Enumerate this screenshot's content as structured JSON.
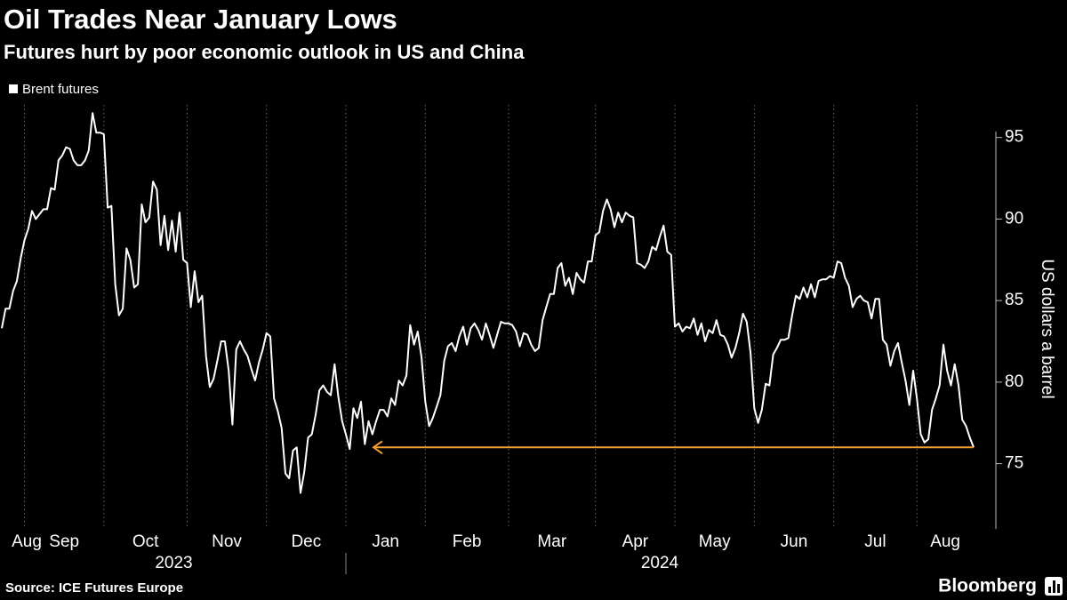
{
  "chart_data": {
    "type": "line",
    "title": "Oil Trades Near January Lows",
    "subtitle": "Futures hurt by poor economic outlook in US and China",
    "series_name": "Brent futures",
    "color": "#ffffff",
    "y_label": "US dollars a barrel",
    "source": "Source: ICE Futures Europe",
    "brand": "Bloomberg",
    "ylim": [
      71,
      97
    ],
    "yticks": [
      75,
      80,
      85,
      90,
      95
    ],
    "axis_side": "right",
    "grid": "x",
    "annotation": {
      "value": 76.0,
      "color": "#f39c31"
    },
    "years": [
      {
        "label": "2023",
        "months": [
          {
            "label": "Aug",
            "values": [
              83.3,
              84.5,
              84.5,
              85.6,
              86.2,
              87.6
            ]
          },
          {
            "label": "Sep",
            "values": [
              88.7,
              89.4,
              90.5,
              90.0,
              90.3,
              90.6,
              90.6,
              91.9,
              91.8,
              93.6,
              93.9,
              94.4,
              94.3,
              93.6,
              93.3,
              93.3,
              93.6,
              94.2,
              96.5,
              95.3,
              95.3
            ]
          },
          {
            "label": "Oct",
            "values": [
              95.2,
              90.7,
              90.8,
              86,
              84.1,
              84.5,
              88.2,
              87.5,
              85.8,
              86,
              90.9,
              89.8,
              90.1,
              92.3,
              91.8,
              88.4,
              90.2,
              88.1,
              89.9,
              88,
              90.4,
              87.5
            ]
          },
          {
            "label": "Nov",
            "values": [
              87.3,
              84.6,
              86.8,
              84.9,
              85.3,
              81.6,
              79.7,
              80.2,
              81.3,
              82.5,
              82.5,
              80.7,
              77.4,
              82.0,
              82.5,
              82.0,
              81.6,
              80.8,
              80.1,
              81.2,
              82.0
            ]
          },
          {
            "label": "Dec",
            "values": [
              83,
              82.8,
              79,
              78.2,
              77.2,
              74.4,
              74.1,
              75.8,
              76,
              73.2,
              74.5,
              76.6,
              76.8,
              78,
              79.5,
              79.8,
              79.4,
              79.2,
              81.1,
              79.1,
              77.6
            ]
          }
        ]
      },
      {
        "label": "2024",
        "months": [
          {
            "label": "Jan",
            "values": [
              76.8,
              75.9,
              78.4,
              77.8,
              78.8,
              76.2,
              77.6,
              76.8,
              77.6,
              78.3,
              78.3,
              77.9,
              79,
              78.6,
              80.1,
              79.8,
              80.4,
              83.5,
              82.3,
              83.1,
              81.5
            ]
          },
          {
            "label": "Feb",
            "values": [
              78.8,
              77.3,
              77.8,
              78.5,
              79.2,
              81.3,
              82.2,
              82.4,
              81.9,
              82.8,
              83.4,
              82.3,
              83.3,
              83.6,
              83.2,
              82.6,
              83.6,
              82.9,
              82.1,
              82.9,
              83.7,
              83.6
            ]
          },
          {
            "label": "Mar",
            "values": [
              83.6,
              83.5,
              83.1,
              82.2,
              83,
              82.9,
              82.3,
              81.9,
              82.1,
              83.8,
              84.6,
              85.4,
              85.4,
              87,
              87.3,
              85.9,
              86.4,
              85.4,
              86.7,
              86.3,
              86.1,
              87.4,
              87.4
            ]
          },
          {
            "label": "Apr",
            "values": [
              89,
              89.2,
              90.5,
              91.2,
              90.6,
              89.5,
              90.4,
              89.8,
              90.4,
              90.2,
              90.1,
              87.3,
              87.2,
              87.0,
              87.4,
              88.3,
              88.1,
              88.9,
              89.6,
              88.0,
              87.8
            ]
          },
          {
            "label": "May",
            "values": [
              83.4,
              83.6,
              83.1,
              83.4,
              83.3,
              83.9,
              82.9,
              83.6,
              82.5,
              83.2,
              83,
              83.8,
              82.9,
              82.8,
              82.3,
              81.5,
              82.1,
              83,
              84.2,
              83.7,
              81.8
            ]
          },
          {
            "label": "Jun",
            "values": [
              78.4,
              77.5,
              78.3,
              79.9,
              79.8,
              81.7,
              82.1,
              82.6,
              82.6,
              82.7,
              84.1,
              85.3,
              85.1,
              85.8,
              85.2,
              86.0,
              85.2,
              86.2,
              86.3,
              86.3,
              86.5
            ]
          },
          {
            "label": "Jul",
            "values": [
              86.4,
              87.4,
              87.3,
              86.4,
              85.9,
              84.6,
              85.1,
              85.3,
              85.0,
              84.9,
              83.9,
              85.1,
              85.1,
              82.6,
              82.3,
              81.0,
              81.9,
              82.4,
              81.2,
              80.1,
              78.6,
              80.7
            ]
          },
          {
            "label": "Aug",
            "values": [
              79.0,
              76.8,
              76.3,
              76.5,
              78.3,
              79,
              79.8,
              82.3,
              80.7,
              79.8,
              81.1,
              79.8,
              77.7,
              77.3,
              76.6,
              76.0
            ]
          }
        ]
      }
    ]
  }
}
